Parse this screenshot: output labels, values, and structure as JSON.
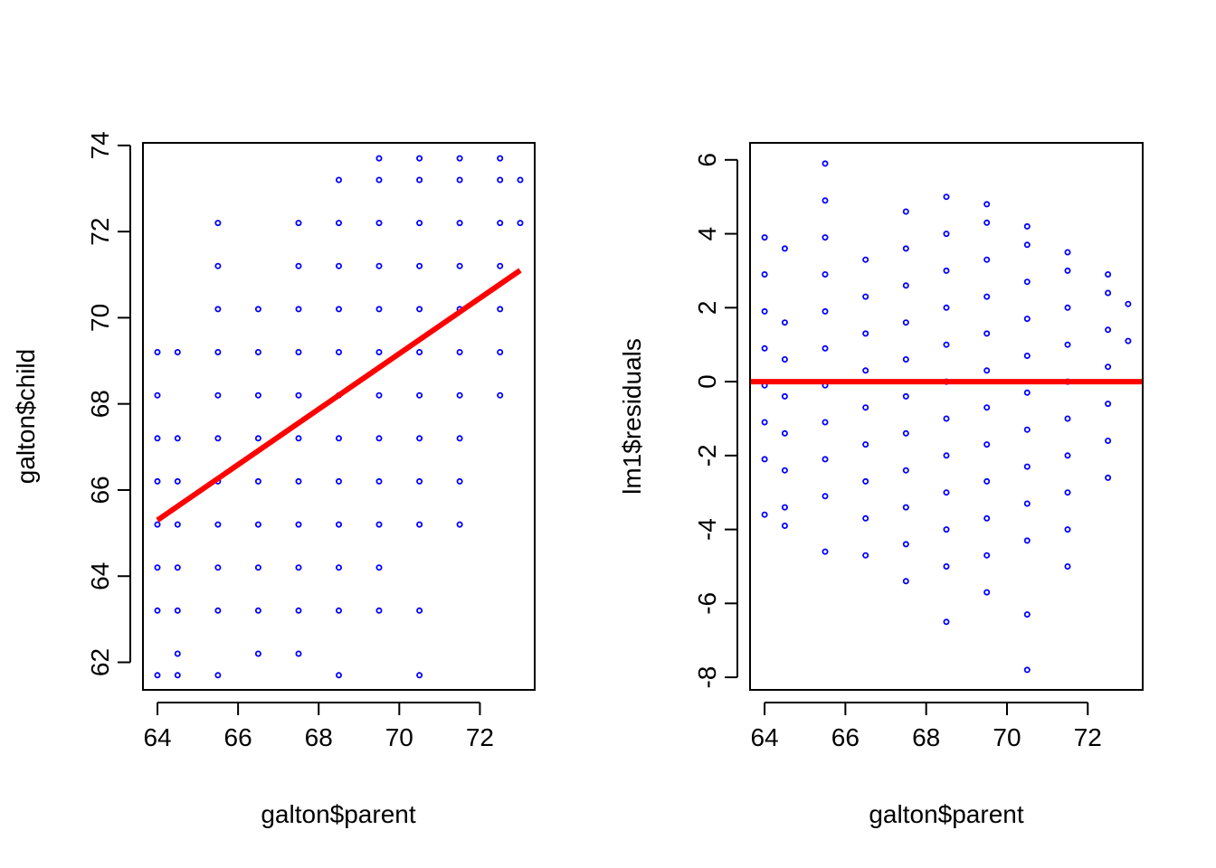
{
  "colors": {
    "points": "#0000ff",
    "fit_line": "#ff0000",
    "axes": "#000000",
    "background": "#ffffff"
  },
  "chart_data": [
    {
      "type": "scatter",
      "xlabel": "galton$parent",
      "ylabel": "galton$child",
      "xlim": [
        63.64,
        73.36
      ],
      "ylim": [
        61.36,
        74.06
      ],
      "xticks": [
        64,
        66,
        68,
        70,
        72
      ],
      "yticks": [
        62,
        64,
        66,
        68,
        70,
        72,
        74
      ],
      "grid": false,
      "point_marker": "open-circle",
      "points": [
        [
          64,
          61.7
        ],
        [
          64.5,
          61.7
        ],
        [
          65.5,
          61.7
        ],
        [
          68.5,
          61.7
        ],
        [
          70.5,
          61.7
        ],
        [
          64.5,
          62.2
        ],
        [
          66.5,
          62.2
        ],
        [
          67.5,
          62.2
        ],
        [
          64,
          63.2
        ],
        [
          64.5,
          63.2
        ],
        [
          65.5,
          63.2
        ],
        [
          66.5,
          63.2
        ],
        [
          67.5,
          63.2
        ],
        [
          68.5,
          63.2
        ],
        [
          69.5,
          63.2
        ],
        [
          70.5,
          63.2
        ],
        [
          64,
          64.2
        ],
        [
          64.5,
          64.2
        ],
        [
          65.5,
          64.2
        ],
        [
          66.5,
          64.2
        ],
        [
          67.5,
          64.2
        ],
        [
          68.5,
          64.2
        ],
        [
          69.5,
          64.2
        ],
        [
          64,
          65.2
        ],
        [
          64.5,
          65.2
        ],
        [
          65.5,
          65.2
        ],
        [
          66.5,
          65.2
        ],
        [
          67.5,
          65.2
        ],
        [
          68.5,
          65.2
        ],
        [
          69.5,
          65.2
        ],
        [
          70.5,
          65.2
        ],
        [
          71.5,
          65.2
        ],
        [
          64,
          66.2
        ],
        [
          64.5,
          66.2
        ],
        [
          65.5,
          66.2
        ],
        [
          66.5,
          66.2
        ],
        [
          67.5,
          66.2
        ],
        [
          68.5,
          66.2
        ],
        [
          69.5,
          66.2
        ],
        [
          70.5,
          66.2
        ],
        [
          71.5,
          66.2
        ],
        [
          64,
          67.2
        ],
        [
          64.5,
          67.2
        ],
        [
          65.5,
          67.2
        ],
        [
          66.5,
          67.2
        ],
        [
          67.5,
          67.2
        ],
        [
          68.5,
          67.2
        ],
        [
          69.5,
          67.2
        ],
        [
          70.5,
          67.2
        ],
        [
          71.5,
          67.2
        ],
        [
          64,
          68.2
        ],
        [
          65.5,
          68.2
        ],
        [
          66.5,
          68.2
        ],
        [
          67.5,
          68.2
        ],
        [
          68.5,
          68.2
        ],
        [
          69.5,
          68.2
        ],
        [
          70.5,
          68.2
        ],
        [
          71.5,
          68.2
        ],
        [
          72.5,
          68.2
        ],
        [
          64,
          69.2
        ],
        [
          64.5,
          69.2
        ],
        [
          65.5,
          69.2
        ],
        [
          66.5,
          69.2
        ],
        [
          67.5,
          69.2
        ],
        [
          68.5,
          69.2
        ],
        [
          69.5,
          69.2
        ],
        [
          70.5,
          69.2
        ],
        [
          71.5,
          69.2
        ],
        [
          72.5,
          69.2
        ],
        [
          65.5,
          70.2
        ],
        [
          66.5,
          70.2
        ],
        [
          67.5,
          70.2
        ],
        [
          68.5,
          70.2
        ],
        [
          69.5,
          70.2
        ],
        [
          70.5,
          70.2
        ],
        [
          71.5,
          70.2
        ],
        [
          72.5,
          70.2
        ],
        [
          65.5,
          71.2
        ],
        [
          67.5,
          71.2
        ],
        [
          68.5,
          71.2
        ],
        [
          69.5,
          71.2
        ],
        [
          70.5,
          71.2
        ],
        [
          71.5,
          71.2
        ],
        [
          72.5,
          71.2
        ],
        [
          65.5,
          72.2
        ],
        [
          67.5,
          72.2
        ],
        [
          68.5,
          72.2
        ],
        [
          69.5,
          72.2
        ],
        [
          70.5,
          72.2
        ],
        [
          71.5,
          72.2
        ],
        [
          72.5,
          72.2
        ],
        [
          73,
          72.2
        ],
        [
          68.5,
          73.2
        ],
        [
          69.5,
          73.2
        ],
        [
          70.5,
          73.2
        ],
        [
          71.5,
          73.2
        ],
        [
          72.5,
          73.2
        ],
        [
          73,
          73.2
        ],
        [
          69.5,
          73.7
        ],
        [
          70.5,
          73.7
        ],
        [
          71.5,
          73.7
        ],
        [
          72.5,
          73.7
        ]
      ],
      "fit_line": {
        "x": [
          64,
          73
        ],
        "y": [
          65.3,
          71.1
        ]
      }
    },
    {
      "type": "scatter",
      "xlabel": "galton$parent",
      "ylabel": "lm1$residuals",
      "xlim": [
        63.64,
        73.36
      ],
      "ylim": [
        -8.34,
        6.46
      ],
      "xticks": [
        64,
        66,
        68,
        70,
        72
      ],
      "yticks": [
        -8,
        -6,
        -4,
        -2,
        0,
        2,
        4,
        6
      ],
      "grid": false,
      "point_marker": "open-circle",
      "points": [
        [
          64,
          3.9
        ],
        [
          64,
          2.9
        ],
        [
          64,
          1.9
        ],
        [
          64,
          0.9
        ],
        [
          64,
          -0.1
        ],
        [
          64,
          -1.1
        ],
        [
          64,
          -2.1
        ],
        [
          64,
          -3.6
        ],
        [
          64.5,
          3.6
        ],
        [
          64.5,
          1.6
        ],
        [
          64.5,
          0.6
        ],
        [
          64.5,
          -0.4
        ],
        [
          64.5,
          -1.4
        ],
        [
          64.5,
          -2.4
        ],
        [
          64.5,
          -3.4
        ],
        [
          64.5,
          -3.9
        ],
        [
          65.5,
          5.9
        ],
        [
          65.5,
          4.9
        ],
        [
          65.5,
          3.9
        ],
        [
          65.5,
          2.9
        ],
        [
          65.5,
          1.9
        ],
        [
          65.5,
          0.9
        ],
        [
          65.5,
          -0.1
        ],
        [
          65.5,
          -1.1
        ],
        [
          65.5,
          -2.1
        ],
        [
          65.5,
          -3.1
        ],
        [
          65.5,
          -4.6
        ],
        [
          66.5,
          3.3
        ],
        [
          66.5,
          2.3
        ],
        [
          66.5,
          1.3
        ],
        [
          66.5,
          0.3
        ],
        [
          66.5,
          -0.7
        ],
        [
          66.5,
          -1.7
        ],
        [
          66.5,
          -2.7
        ],
        [
          66.5,
          -3.7
        ],
        [
          66.5,
          -4.7
        ],
        [
          67.5,
          4.6
        ],
        [
          67.5,
          3.6
        ],
        [
          67.5,
          2.6
        ],
        [
          67.5,
          1.6
        ],
        [
          67.5,
          0.6
        ],
        [
          67.5,
          -0.4
        ],
        [
          67.5,
          -1.4
        ],
        [
          67.5,
          -2.4
        ],
        [
          67.5,
          -3.4
        ],
        [
          67.5,
          -4.4
        ],
        [
          67.5,
          -5.4
        ],
        [
          68.5,
          5.0
        ],
        [
          68.5,
          4.0
        ],
        [
          68.5,
          3.0
        ],
        [
          68.5,
          2.0
        ],
        [
          68.5,
          1.0
        ],
        [
          68.5,
          0.0
        ],
        [
          68.5,
          -1.0
        ],
        [
          68.5,
          -2.0
        ],
        [
          68.5,
          -3.0
        ],
        [
          68.5,
          -4.0
        ],
        [
          68.5,
          -5.0
        ],
        [
          68.5,
          -6.5
        ],
        [
          69.5,
          4.8
        ],
        [
          69.5,
          4.3
        ],
        [
          69.5,
          3.3
        ],
        [
          69.5,
          2.3
        ],
        [
          69.5,
          1.3
        ],
        [
          69.5,
          0.3
        ],
        [
          69.5,
          -0.7
        ],
        [
          69.5,
          -1.7
        ],
        [
          69.5,
          -2.7
        ],
        [
          69.5,
          -3.7
        ],
        [
          69.5,
          -4.7
        ],
        [
          69.5,
          -5.7
        ],
        [
          70.5,
          4.2
        ],
        [
          70.5,
          3.7
        ],
        [
          70.5,
          2.7
        ],
        [
          70.5,
          1.7
        ],
        [
          70.5,
          0.7
        ],
        [
          70.5,
          -0.3
        ],
        [
          70.5,
          -1.3
        ],
        [
          70.5,
          -2.3
        ],
        [
          70.5,
          -3.3
        ],
        [
          70.5,
          -4.3
        ],
        [
          70.5,
          -6.3
        ],
        [
          70.5,
          -7.8
        ],
        [
          71.5,
          3.5
        ],
        [
          71.5,
          3.0
        ],
        [
          71.5,
          2.0
        ],
        [
          71.5,
          1.0
        ],
        [
          71.5,
          0.0
        ],
        [
          71.5,
          -1.0
        ],
        [
          71.5,
          -2.0
        ],
        [
          71.5,
          -3.0
        ],
        [
          71.5,
          -4.0
        ],
        [
          71.5,
          -5.0
        ],
        [
          72.5,
          2.9
        ],
        [
          72.5,
          2.4
        ],
        [
          72.5,
          1.4
        ],
        [
          72.5,
          0.4
        ],
        [
          72.5,
          -0.6
        ],
        [
          72.5,
          -1.6
        ],
        [
          72.5,
          -2.6
        ],
        [
          73,
          2.1
        ],
        [
          73,
          1.1
        ]
      ],
      "fit_line": {
        "x": [
          63.64,
          73.36
        ],
        "y": [
          0,
          0
        ]
      }
    }
  ]
}
